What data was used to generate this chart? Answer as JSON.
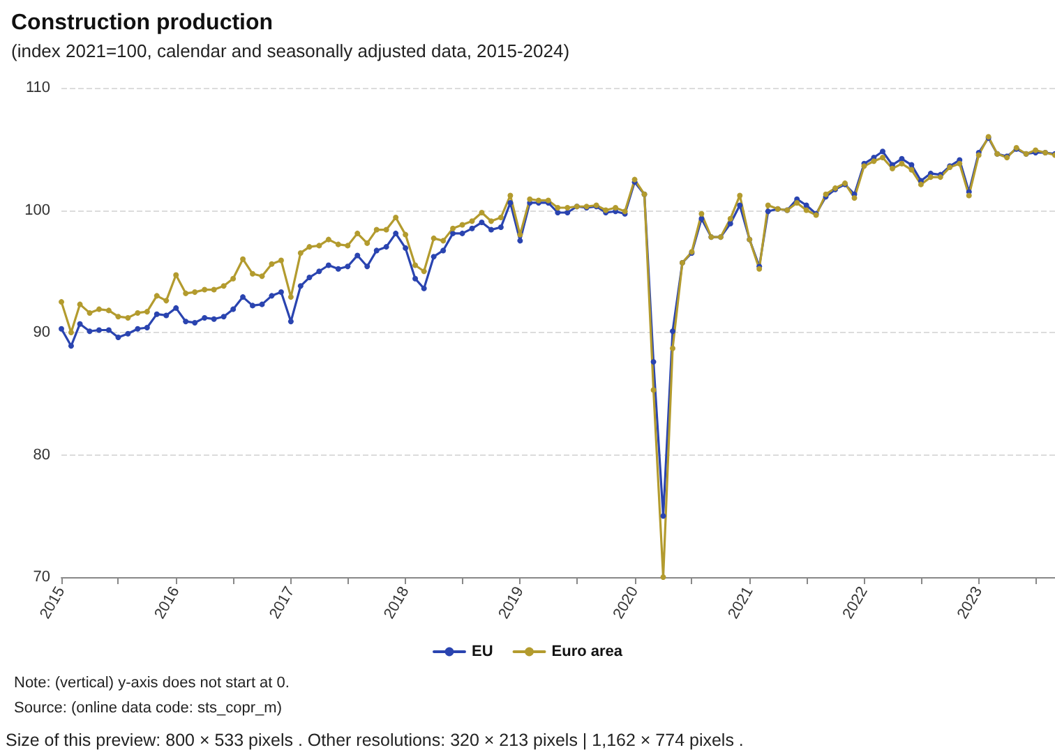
{
  "chart_data": {
    "type": "line",
    "title": "Construction production",
    "subtitle": "(index 2021=100, calendar and seasonally adjusted data, 2015-2024)",
    "annotations": [
      "Note: (vertical) y-axis does not start at 0.",
      "Source: (online data code: sts_copr_m)",
      "Size of this preview: 800 × 533 pixels . Other resolutions: 320 × 213 pixels | 1,162 × 774 pixels ."
    ],
    "x": [
      "2015-01",
      "2015-02",
      "2015-03",
      "2015-04",
      "2015-05",
      "2015-06",
      "2015-07",
      "2015-08",
      "2015-09",
      "2015-10",
      "2015-11",
      "2015-12",
      "2016-01",
      "2016-02",
      "2016-03",
      "2016-04",
      "2016-05",
      "2016-06",
      "2016-07",
      "2016-08",
      "2016-09",
      "2016-10",
      "2016-11",
      "2016-12",
      "2017-01",
      "2017-02",
      "2017-03",
      "2017-04",
      "2017-05",
      "2017-06",
      "2017-07",
      "2017-08",
      "2017-09",
      "2017-10",
      "2017-11",
      "2017-12",
      "2018-01",
      "2018-02",
      "2018-03",
      "2018-04",
      "2018-05",
      "2018-06",
      "2018-07",
      "2018-08",
      "2018-09",
      "2018-10",
      "2018-11",
      "2018-12",
      "2019-01",
      "2019-02",
      "2019-03",
      "2019-04",
      "2019-05",
      "2019-06",
      "2019-07",
      "2019-08",
      "2019-09",
      "2019-10",
      "2019-11",
      "2019-12",
      "2020-01",
      "2020-02",
      "2020-03",
      "2020-04",
      "2020-05",
      "2020-06",
      "2020-07",
      "2020-08",
      "2020-09",
      "2020-10",
      "2020-11",
      "2020-12",
      "2021-01",
      "2021-02",
      "2021-03",
      "2021-04",
      "2021-05",
      "2021-06",
      "2021-07",
      "2021-08",
      "2021-09",
      "2021-10",
      "2021-11",
      "2021-12",
      "2022-01",
      "2022-02",
      "2022-03",
      "2022-04",
      "2022-05",
      "2022-06",
      "2022-07",
      "2022-08",
      "2022-09",
      "2022-10",
      "2022-11",
      "2022-12",
      "2023-01",
      "2023-02",
      "2023-03",
      "2023-04",
      "2023-05",
      "2023-06",
      "2023-07",
      "2023-08",
      "2023-09"
    ],
    "series": [
      {
        "name": "EU",
        "color": "#2a44b0",
        "values": [
          90.3,
          88.9,
          90.7,
          90.1,
          90.2,
          90.2,
          89.6,
          89.9,
          90.3,
          90.4,
          91.5,
          91.4,
          92.0,
          90.9,
          90.8,
          91.2,
          91.1,
          91.3,
          91.9,
          92.9,
          92.2,
          92.3,
          93.0,
          93.3,
          90.9,
          93.8,
          94.5,
          95.0,
          95.5,
          95.2,
          95.4,
          96.3,
          95.4,
          96.7,
          97.0,
          98.1,
          96.9,
          94.4,
          93.6,
          96.2,
          96.7,
          98.1,
          98.1,
          98.5,
          99.0,
          98.4,
          98.6,
          100.6,
          97.5,
          100.6,
          100.6,
          100.6,
          99.8,
          99.8,
          100.3,
          100.2,
          100.3,
          99.8,
          99.9,
          99.7,
          102.3,
          101.3,
          87.6,
          75.0,
          90.1,
          95.7,
          96.5,
          99.3,
          97.8,
          97.8,
          98.9,
          100.4,
          97.6,
          95.4,
          99.9,
          100.1,
          100.0,
          100.9,
          100.4,
          99.7,
          101.1,
          101.7,
          102.1,
          101.3,
          103.8,
          104.3,
          104.8,
          103.7,
          104.2,
          103.7,
          102.4,
          103.0,
          102.9,
          103.6,
          104.1,
          101.5,
          104.7,
          105.9,
          104.6,
          104.4,
          105.0,
          104.6,
          104.7,
          104.7,
          104.6
        ]
      },
      {
        "name": "Euro area",
        "color": "#b39b2e",
        "values": [
          92.5,
          90.0,
          92.3,
          91.6,
          91.9,
          91.8,
          91.3,
          91.2,
          91.6,
          91.7,
          93.0,
          92.6,
          94.7,
          93.2,
          93.3,
          93.5,
          93.5,
          93.8,
          94.4,
          96.0,
          94.8,
          94.6,
          95.6,
          95.9,
          92.9,
          96.5,
          97.0,
          97.1,
          97.6,
          97.2,
          97.1,
          98.1,
          97.3,
          98.4,
          98.4,
          99.4,
          98.0,
          95.5,
          95.0,
          97.7,
          97.5,
          98.5,
          98.8,
          99.1,
          99.8,
          99.1,
          99.4,
          101.2,
          98.0,
          100.9,
          100.8,
          100.8,
          100.2,
          100.2,
          100.3,
          100.3,
          100.4,
          100.0,
          100.2,
          99.9,
          102.5,
          101.3,
          85.3,
          70.0,
          88.7,
          95.7,
          96.6,
          99.7,
          97.8,
          97.8,
          99.3,
          101.2,
          97.6,
          95.2,
          100.4,
          100.1,
          100.0,
          100.6,
          100.0,
          99.6,
          101.3,
          101.8,
          102.2,
          101.0,
          103.6,
          104.0,
          104.3,
          103.4,
          103.8,
          103.3,
          102.1,
          102.7,
          102.7,
          103.5,
          103.8,
          101.2,
          104.5,
          106.0,
          104.6,
          104.3,
          105.1,
          104.6,
          104.9,
          104.7,
          104.5
        ]
      }
    ],
    "xlim": [
      "2015-01",
      "2023-09"
    ],
    "xticks": [
      "2015",
      {
        "value": "2015-07",
        "label": null
      },
      "2016",
      {
        "value": "2016-07",
        "label": null
      },
      "2017",
      {
        "value": "2017-07",
        "label": null
      },
      "2018",
      {
        "value": "2018-07",
        "label": null
      },
      "2019",
      {
        "value": "2019-07",
        "label": null
      },
      "2020",
      {
        "value": "2020-07",
        "label": null
      },
      "2021",
      {
        "value": "2021-07",
        "label": null
      },
      "2022",
      {
        "value": "2022-07",
        "label": null
      },
      "2023",
      {
        "value": "2023-07",
        "label": null
      }
    ],
    "ylim": [
      70,
      110
    ],
    "yticks": [
      70,
      80,
      90,
      100,
      110
    ],
    "grid": "y",
    "legend": "bottom",
    "marker": "circle",
    "line_style": "solid"
  }
}
